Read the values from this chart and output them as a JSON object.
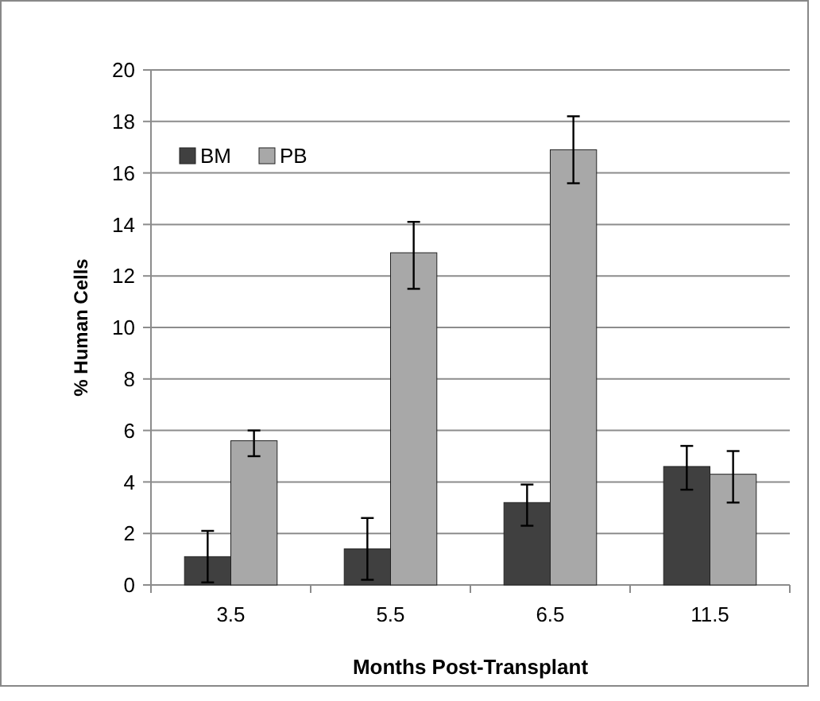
{
  "chart_data": {
    "type": "bar",
    "xlabel": "Months Post-Transplant",
    "ylabel": "% Human Cells",
    "categories": [
      "3.5",
      "5.5",
      "6.5",
      "11.5"
    ],
    "series": [
      {
        "name": "BM",
        "color": "#404040",
        "values": [
          1.1,
          1.4,
          3.2,
          4.6
        ],
        "errors": [
          [
            0.1,
            2.1
          ],
          [
            0.2,
            2.6
          ],
          [
            2.3,
            3.9
          ],
          [
            3.7,
            5.4
          ]
        ]
      },
      {
        "name": "PB",
        "color": "#a8a8a8",
        "values": [
          5.6,
          12.9,
          16.9,
          4.3
        ],
        "errors": [
          [
            5.0,
            6.0
          ],
          [
            11.5,
            14.1
          ],
          [
            15.6,
            18.2
          ],
          [
            3.2,
            5.2
          ]
        ]
      }
    ],
    "ylim": [
      0,
      20
    ],
    "yticks": [
      0,
      2,
      4,
      6,
      8,
      10,
      12,
      14,
      16,
      18,
      20
    ],
    "grid": "y",
    "legend": "top left"
  }
}
